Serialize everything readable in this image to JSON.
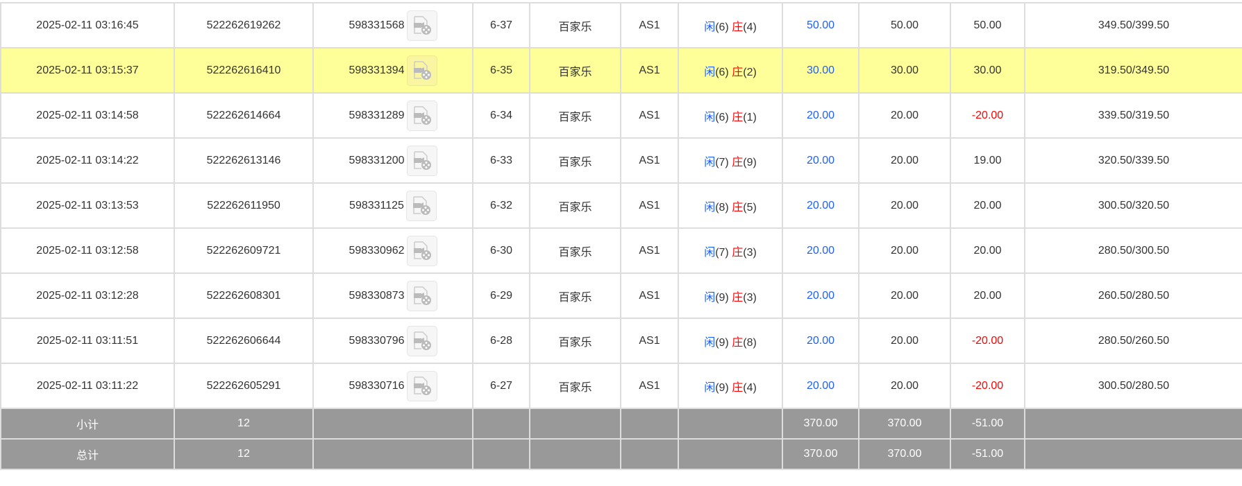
{
  "rows": [
    {
      "time": "2025-02-11 03:16:45",
      "bet_id": "522262619262",
      "round_id": "598331568",
      "shoe": "6-37",
      "game": "百家乐",
      "table": "AS1",
      "player_label": "闲",
      "player": "(6)",
      "banker_label": "庄",
      "banker": "(4)",
      "bet": "50.00",
      "valid": "50.00",
      "win": "50.00",
      "balance": "349.50/399.50",
      "highlight": false
    },
    {
      "time": "2025-02-11 03:15:37",
      "bet_id": "522262616410",
      "round_id": "598331394",
      "shoe": "6-35",
      "game": "百家乐",
      "table": "AS1",
      "player_label": "闲",
      "player": "(6)",
      "banker_label": "庄",
      "banker": "(2)",
      "bet": "30.00",
      "valid": "30.00",
      "win": "30.00",
      "balance": "319.50/349.50",
      "highlight": true
    },
    {
      "time": "2025-02-11 03:14:58",
      "bet_id": "522262614664",
      "round_id": "598331289",
      "shoe": "6-34",
      "game": "百家乐",
      "table": "AS1",
      "player_label": "闲",
      "player": "(6)",
      "banker_label": "庄",
      "banker": "(1)",
      "bet": "20.00",
      "valid": "20.00",
      "win": "-20.00",
      "balance": "339.50/319.50",
      "highlight": false
    },
    {
      "time": "2025-02-11 03:14:22",
      "bet_id": "522262613146",
      "round_id": "598331200",
      "shoe": "6-33",
      "game": "百家乐",
      "table": "AS1",
      "player_label": "闲",
      "player": "(7)",
      "banker_label": "庄",
      "banker": "(9)",
      "bet": "20.00",
      "valid": "20.00",
      "win": "19.00",
      "balance": "320.50/339.50",
      "highlight": false
    },
    {
      "time": "2025-02-11 03:13:53",
      "bet_id": "522262611950",
      "round_id": "598331125",
      "shoe": "6-32",
      "game": "百家乐",
      "table": "AS1",
      "player_label": "闲",
      "player": "(8)",
      "banker_label": "庄",
      "banker": "(5)",
      "bet": "20.00",
      "valid": "20.00",
      "win": "20.00",
      "balance": "300.50/320.50",
      "highlight": false
    },
    {
      "time": "2025-02-11 03:12:58",
      "bet_id": "522262609721",
      "round_id": "598330962",
      "shoe": "6-30",
      "game": "百家乐",
      "table": "AS1",
      "player_label": "闲",
      "player": "(7)",
      "banker_label": "庄",
      "banker": "(3)",
      "bet": "20.00",
      "valid": "20.00",
      "win": "20.00",
      "balance": "280.50/300.50",
      "highlight": false
    },
    {
      "time": "2025-02-11 03:12:28",
      "bet_id": "522262608301",
      "round_id": "598330873",
      "shoe": "6-29",
      "game": "百家乐",
      "table": "AS1",
      "player_label": "闲",
      "player": "(9)",
      "banker_label": "庄",
      "banker": "(3)",
      "bet": "20.00",
      "valid": "20.00",
      "win": "20.00",
      "balance": "260.50/280.50",
      "highlight": false
    },
    {
      "time": "2025-02-11 03:11:51",
      "bet_id": "522262606644",
      "round_id": "598330796",
      "shoe": "6-28",
      "game": "百家乐",
      "table": "AS1",
      "player_label": "闲",
      "player": "(9)",
      "banker_label": "庄",
      "banker": "(8)",
      "bet": "20.00",
      "valid": "20.00",
      "win": "-20.00",
      "balance": "280.50/260.50",
      "highlight": false
    },
    {
      "time": "2025-02-11 03:11:22",
      "bet_id": "522262605291",
      "round_id": "598330716",
      "shoe": "6-27",
      "game": "百家乐",
      "table": "AS1",
      "player_label": "闲",
      "player": "(9)",
      "banker_label": "庄",
      "banker": "(4)",
      "bet": "20.00",
      "valid": "20.00",
      "win": "-20.00",
      "balance": "300.50/280.50",
      "highlight": false
    }
  ],
  "subtotal": {
    "label": "小计",
    "count": "12",
    "bet": "370.00",
    "valid": "370.00",
    "win": "-51.00"
  },
  "total": {
    "label": "总计",
    "count": "12",
    "bet": "370.00",
    "valid": "370.00",
    "win": "-51.00"
  },
  "colors": {
    "highlight": "#ffff99",
    "player": "#1e5eff",
    "banker": "#ff0000",
    "negative": "#ff0000",
    "summary_bg": "#999999"
  },
  "icons": {
    "replay": "video-file-icon"
  }
}
